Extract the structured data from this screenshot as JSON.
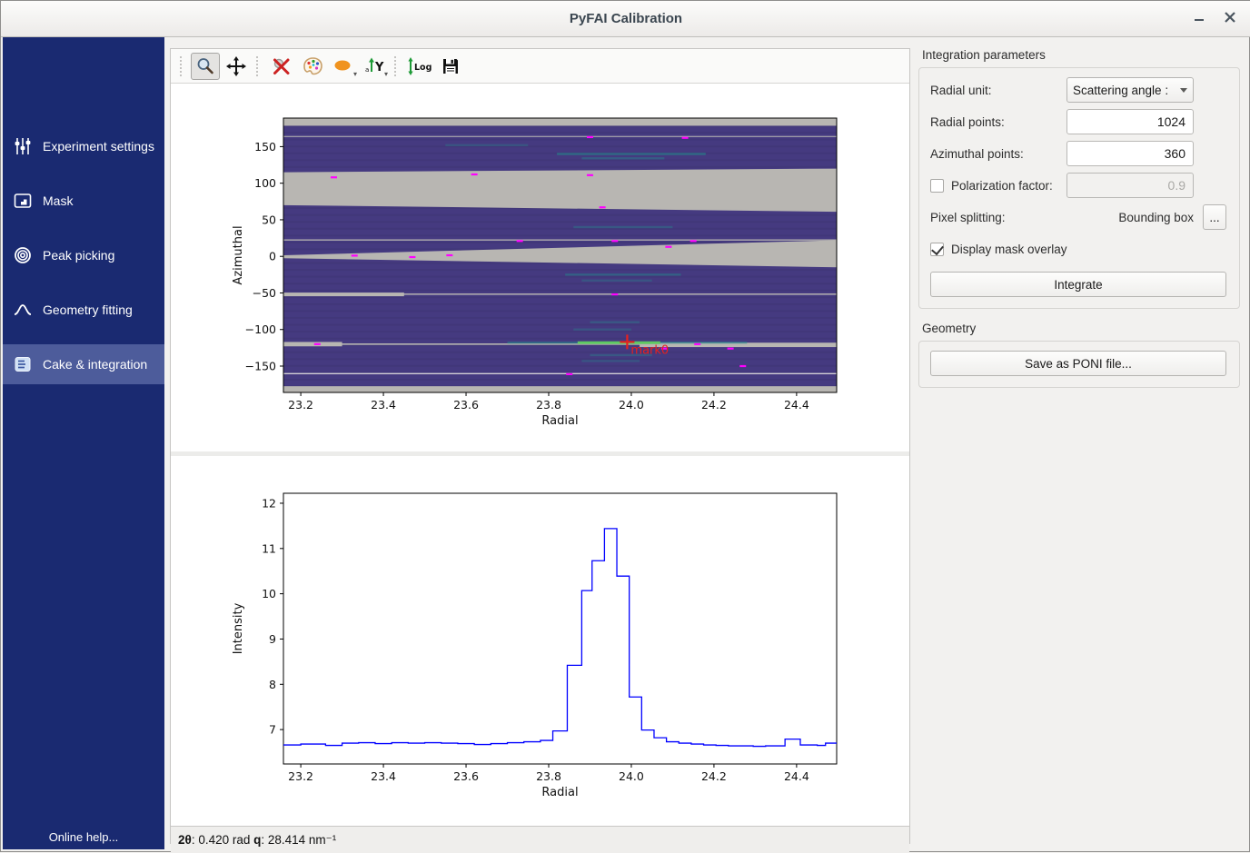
{
  "window": {
    "title": "PyFAI Calibration"
  },
  "sidebar": {
    "items": [
      {
        "label": "Experiment settings",
        "icon": "sliders-icon",
        "selected": false
      },
      {
        "label": "Mask",
        "icon": "mask-image-icon",
        "selected": false
      },
      {
        "label": "Peak picking",
        "icon": "peak-rings-icon",
        "selected": false
      },
      {
        "label": "Geometry fitting",
        "icon": "geometry-curve-icon",
        "selected": false
      },
      {
        "label": "Cake & integration",
        "icon": "cake-layers-icon",
        "selected": true
      }
    ],
    "online_help": "Online help..."
  },
  "toolbar": {
    "log_label": "Log",
    "y_label": "Y",
    "a_label": "a"
  },
  "integration_parameters": {
    "title": "Integration parameters",
    "radial_unit": {
      "label": "Radial unit:",
      "value": "Scattering angle :"
    },
    "radial_points": {
      "label": "Radial points:",
      "value": "1024"
    },
    "azimuthal_points": {
      "label": "Azimuthal points:",
      "value": "360"
    },
    "polarization": {
      "label": "Polarization factor:",
      "value": "0.9",
      "checked": false
    },
    "pixel_splitting": {
      "label": "Pixel splitting:",
      "value": "Bounding box",
      "more": "..."
    },
    "mask_overlay": {
      "label": "Display mask overlay",
      "checked": true
    },
    "integrate_label": "Integrate"
  },
  "geometry": {
    "title": "Geometry",
    "save_poni_label": "Save as PONI file..."
  },
  "statusbar": {
    "segments": [
      {
        "text": "2θ",
        "bold": true
      },
      {
        "text": ": 0.420 rad  ",
        "bold": false
      },
      {
        "text": "q",
        "bold": true
      },
      {
        "text": ": 28.414 nm⁻¹",
        "bold": false
      }
    ]
  },
  "chart_data": [
    {
      "id": "cake",
      "type": "heatmap",
      "title": "",
      "xlabel": "Radial",
      "ylabel": "Azimuthal",
      "xlim": [
        23.158,
        24.497
      ],
      "ylim": [
        -186,
        189
      ],
      "xticks": [
        23.2,
        23.4,
        23.6,
        23.8,
        24.0,
        24.2,
        24.4
      ],
      "yticks": [
        150,
        100,
        50,
        0,
        -50,
        -100,
        -150
      ],
      "colors": {
        "base": "#453a80",
        "mask": "#b8b6b2",
        "light_line": "#e9e7e4",
        "streak": "#21918c",
        "bright": "#5ec962",
        "dash": "#ff00ff",
        "marker": "#e8211d"
      },
      "mask_bands": [
        {
          "a1": 189,
          "a2": 178.5
        },
        {
          "a1": 164.5,
          "a2": 163.2
        },
        {
          "l1": 115,
          "l2": 70,
          "r1": 120,
          "r2": 61
        },
        {
          "a1": 23.2,
          "a2": 21.6
        },
        {
          "l1": 1.5,
          "l2": -2.5,
          "r1": 22,
          "r2": -15
        },
        {
          "a1": -50.8,
          "a2": -52.6
        },
        {
          "a1": -49.5,
          "a2": -54.5,
          "x2": 23.45
        },
        {
          "a1": -119,
          "a2": -121
        },
        {
          "a1": -117,
          "a2": -123,
          "x2": 23.3
        },
        {
          "a1": -118,
          "a2": -124,
          "x1": 24.02
        },
        {
          "a1": -159.5,
          "a2": -161,
          "light": true
        },
        {
          "a1": -177.5,
          "a2": -189
        }
      ],
      "streaks": [
        {
          "x1": 23.82,
          "x2": 24.18,
          "a": 140,
          "o": 0.55
        },
        {
          "x1": 23.88,
          "x2": 24.08,
          "a": 134,
          "o": 0.4
        },
        {
          "x1": 23.55,
          "x2": 23.75,
          "a": 152,
          "o": 0.3
        },
        {
          "x1": 23.86,
          "x2": 24.1,
          "a": 40,
          "o": 0.35
        },
        {
          "x1": 23.84,
          "x2": 24.12,
          "a": -25,
          "o": 0.45
        },
        {
          "x1": 23.88,
          "x2": 24.05,
          "a": -33,
          "o": 0.3
        },
        {
          "x1": 23.9,
          "x2": 24.02,
          "a": -90,
          "o": 0.35
        },
        {
          "x1": 23.86,
          "x2": 24.0,
          "a": -100,
          "o": 0.3
        },
        {
          "x1": 23.7,
          "x2": 24.28,
          "a": -118,
          "o": 0.5
        },
        {
          "x1": 23.9,
          "x2": 24.05,
          "a": -135,
          "o": 0.35
        },
        {
          "x1": 23.88,
          "x2": 24.02,
          "a": -143,
          "o": 0.3
        }
      ],
      "bright_streak": {
        "x1": 23.87,
        "x2": 24.07,
        "a": -118
      },
      "dashes": [
        [
          23.9,
          163
        ],
        [
          24.13,
          162
        ],
        [
          23.62,
          112
        ],
        [
          23.9,
          111
        ],
        [
          23.28,
          108
        ],
        [
          23.93,
          67
        ],
        [
          23.33,
          1
        ],
        [
          23.47,
          -1
        ],
        [
          23.56,
          1.5
        ],
        [
          23.73,
          21
        ],
        [
          23.96,
          21
        ],
        [
          24.09,
          13
        ],
        [
          24.15,
          21
        ],
        [
          23.24,
          -120
        ],
        [
          24.08,
          -126
        ],
        [
          24.16,
          -120
        ],
        [
          24.24,
          -126
        ],
        [
          23.85,
          -161
        ],
        [
          24.27,
          -150
        ],
        [
          23.96,
          -52
        ]
      ],
      "marker": {
        "x": 23.99,
        "a": -117,
        "label": "mark0"
      }
    },
    {
      "id": "integrated",
      "type": "line",
      "title": "",
      "xlabel": "Radial",
      "ylabel": "Intensity",
      "xlim": [
        23.158,
        24.497
      ],
      "ylim": [
        6.24,
        12.22
      ],
      "xticks": [
        23.2,
        23.4,
        23.6,
        23.8,
        24.0,
        24.2,
        24.4
      ],
      "yticks": [
        7,
        8,
        9,
        10,
        11,
        12
      ],
      "line_color": "#0000ff",
      "series": [
        {
          "name": "integrated-intensity",
          "step": true,
          "x": [
            23.158,
            23.2,
            23.26,
            23.3,
            23.34,
            23.38,
            23.42,
            23.46,
            23.5,
            23.54,
            23.58,
            23.62,
            23.66,
            23.7,
            23.74,
            23.78,
            23.81,
            23.845,
            23.88,
            23.905,
            23.935,
            23.965,
            23.995,
            24.025,
            24.055,
            24.085,
            24.115,
            24.145,
            24.175,
            24.205,
            24.235,
            24.265,
            24.295,
            24.325,
            24.372,
            24.409,
            24.45,
            24.47
          ],
          "y": [
            6.66,
            6.68,
            6.65,
            6.7,
            6.71,
            6.69,
            6.71,
            6.7,
            6.71,
            6.7,
            6.69,
            6.67,
            6.69,
            6.71,
            6.73,
            6.76,
            6.97,
            8.42,
            10.07,
            10.73,
            11.44,
            10.39,
            7.72,
            6.99,
            6.82,
            6.73,
            6.7,
            6.68,
            6.66,
            6.65,
            6.64,
            6.64,
            6.63,
            6.64,
            6.79,
            6.66,
            6.65,
            6.7
          ]
        }
      ]
    }
  ]
}
